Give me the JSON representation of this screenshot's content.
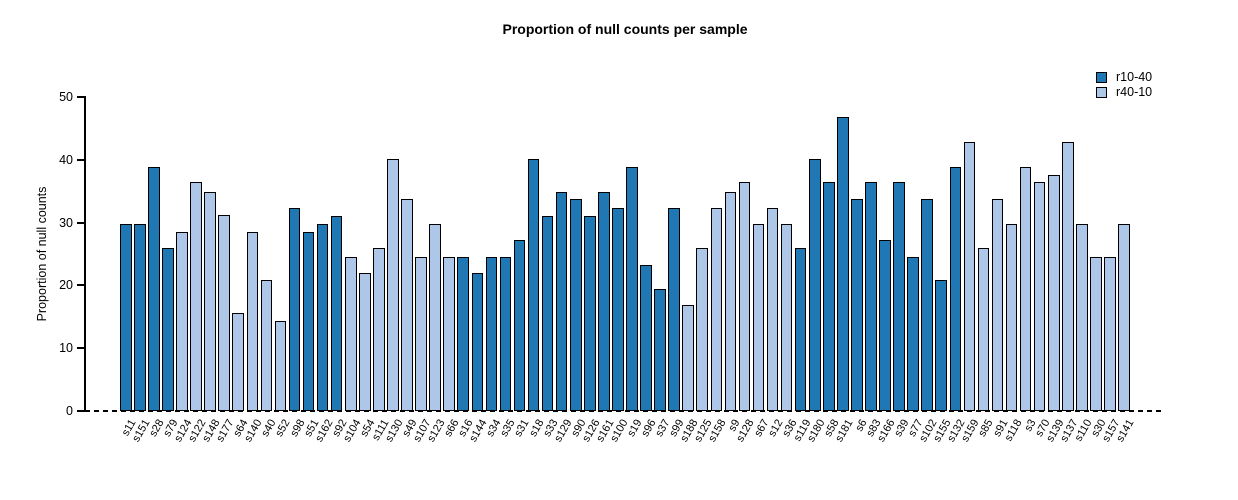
{
  "chart_data": {
    "type": "bar",
    "title": "Proportion of null counts per sample",
    "xlabel": "",
    "ylabel": "Proportion of null counts",
    "ylim": [
      0,
      50
    ],
    "yticks": [
      0,
      10,
      20,
      30,
      40,
      50
    ],
    "grid": false,
    "zero_line_style": "dashed",
    "legend": {
      "position": "top-right",
      "entries": [
        {
          "label": "r10-40",
          "color": "#1f77b4"
        },
        {
          "label": "r40-10",
          "color": "#aec7e8"
        }
      ]
    },
    "bars": [
      {
        "label": "s11",
        "value": 29.8,
        "series": "r10-40"
      },
      {
        "label": "s151",
        "value": 29.8,
        "series": "r10-40"
      },
      {
        "label": "s28",
        "value": 38.9,
        "series": "r10-40"
      },
      {
        "label": "s79",
        "value": 25.9,
        "series": "r10-40"
      },
      {
        "label": "s124",
        "value": 28.5,
        "series": "r40-10"
      },
      {
        "label": "s122",
        "value": 36.4,
        "series": "r40-10"
      },
      {
        "label": "s148",
        "value": 34.9,
        "series": "r40-10"
      },
      {
        "label": "s177",
        "value": 31.2,
        "series": "r40-10"
      },
      {
        "label": "s64",
        "value": 15.6,
        "series": "r40-10"
      },
      {
        "label": "s140",
        "value": 28.5,
        "series": "r40-10"
      },
      {
        "label": "s40",
        "value": 20.8,
        "series": "r40-10"
      },
      {
        "label": "s52",
        "value": 14.4,
        "series": "r40-10"
      },
      {
        "label": "s98",
        "value": 32.4,
        "series": "r10-40"
      },
      {
        "label": "s51",
        "value": 28.5,
        "series": "r10-40"
      },
      {
        "label": "s162",
        "value": 29.8,
        "series": "r10-40"
      },
      {
        "label": "s92",
        "value": 31.1,
        "series": "r10-40"
      },
      {
        "label": "s104",
        "value": 24.5,
        "series": "r40-10"
      },
      {
        "label": "s54",
        "value": 22.0,
        "series": "r40-10"
      },
      {
        "label": "s111",
        "value": 25.9,
        "series": "r40-10"
      },
      {
        "label": "s130",
        "value": 40.1,
        "series": "r40-10"
      },
      {
        "label": "s49",
        "value": 33.7,
        "series": "r40-10"
      },
      {
        "label": "s107",
        "value": 24.5,
        "series": "r40-10"
      },
      {
        "label": "s123",
        "value": 29.8,
        "series": "r40-10"
      },
      {
        "label": "s66",
        "value": 24.5,
        "series": "r40-10"
      },
      {
        "label": "s16",
        "value": 24.5,
        "series": "r10-40"
      },
      {
        "label": "s144",
        "value": 22.0,
        "series": "r10-40"
      },
      {
        "label": "s34",
        "value": 24.5,
        "series": "r10-40"
      },
      {
        "label": "s35",
        "value": 24.5,
        "series": "r10-40"
      },
      {
        "label": "s31",
        "value": 27.2,
        "series": "r10-40"
      },
      {
        "label": "s18",
        "value": 40.1,
        "series": "r10-40"
      },
      {
        "label": "s33",
        "value": 31.1,
        "series": "r10-40"
      },
      {
        "label": "s129",
        "value": 34.9,
        "series": "r10-40"
      },
      {
        "label": "s90",
        "value": 33.7,
        "series": "r10-40"
      },
      {
        "label": "s126",
        "value": 31.1,
        "series": "r10-40"
      },
      {
        "label": "s161",
        "value": 34.9,
        "series": "r10-40"
      },
      {
        "label": "s100",
        "value": 32.4,
        "series": "r10-40"
      },
      {
        "label": "s19",
        "value": 38.9,
        "series": "r10-40"
      },
      {
        "label": "s96",
        "value": 23.3,
        "series": "r10-40"
      },
      {
        "label": "s37",
        "value": 19.5,
        "series": "r10-40"
      },
      {
        "label": "s99",
        "value": 32.4,
        "series": "r10-40"
      },
      {
        "label": "s188",
        "value": 16.8,
        "series": "r40-10"
      },
      {
        "label": "s125",
        "value": 25.9,
        "series": "r40-10"
      },
      {
        "label": "s158",
        "value": 32.4,
        "series": "r40-10"
      },
      {
        "label": "s9",
        "value": 34.9,
        "series": "r40-10"
      },
      {
        "label": "s128",
        "value": 36.4,
        "series": "r40-10"
      },
      {
        "label": "s67",
        "value": 29.8,
        "series": "r40-10"
      },
      {
        "label": "s12",
        "value": 32.4,
        "series": "r40-10"
      },
      {
        "label": "s36",
        "value": 29.8,
        "series": "r40-10"
      },
      {
        "label": "s119",
        "value": 25.9,
        "series": "r10-40"
      },
      {
        "label": "s180",
        "value": 40.1,
        "series": "r10-40"
      },
      {
        "label": "s58",
        "value": 36.4,
        "series": "r10-40"
      },
      {
        "label": "s181",
        "value": 46.8,
        "series": "r10-40"
      },
      {
        "label": "s6",
        "value": 33.7,
        "series": "r10-40"
      },
      {
        "label": "s83",
        "value": 36.4,
        "series": "r10-40"
      },
      {
        "label": "s166",
        "value": 27.2,
        "series": "r10-40"
      },
      {
        "label": "s39",
        "value": 36.4,
        "series": "r10-40"
      },
      {
        "label": "s77",
        "value": 24.5,
        "series": "r10-40"
      },
      {
        "label": "s102",
        "value": 33.7,
        "series": "r10-40"
      },
      {
        "label": "s155",
        "value": 20.8,
        "series": "r10-40"
      },
      {
        "label": "s132",
        "value": 38.9,
        "series": "r10-40"
      },
      {
        "label": "s159",
        "value": 42.8,
        "series": "r40-10"
      },
      {
        "label": "s85",
        "value": 25.9,
        "series": "r40-10"
      },
      {
        "label": "s91",
        "value": 33.7,
        "series": "r40-10"
      },
      {
        "label": "s118",
        "value": 29.8,
        "series": "r40-10"
      },
      {
        "label": "s3",
        "value": 38.9,
        "series": "r40-10"
      },
      {
        "label": "s70",
        "value": 36.4,
        "series": "r40-10"
      },
      {
        "label": "s139",
        "value": 37.6,
        "series": "r40-10"
      },
      {
        "label": "s137",
        "value": 42.8,
        "series": "r40-10"
      },
      {
        "label": "s110",
        "value": 29.8,
        "series": "r40-10"
      },
      {
        "label": "s30",
        "value": 24.5,
        "series": "r40-10"
      },
      {
        "label": "s157",
        "value": 24.5,
        "series": "r40-10"
      },
      {
        "label": "s141",
        "value": 29.8,
        "series": "r40-10"
      }
    ]
  }
}
